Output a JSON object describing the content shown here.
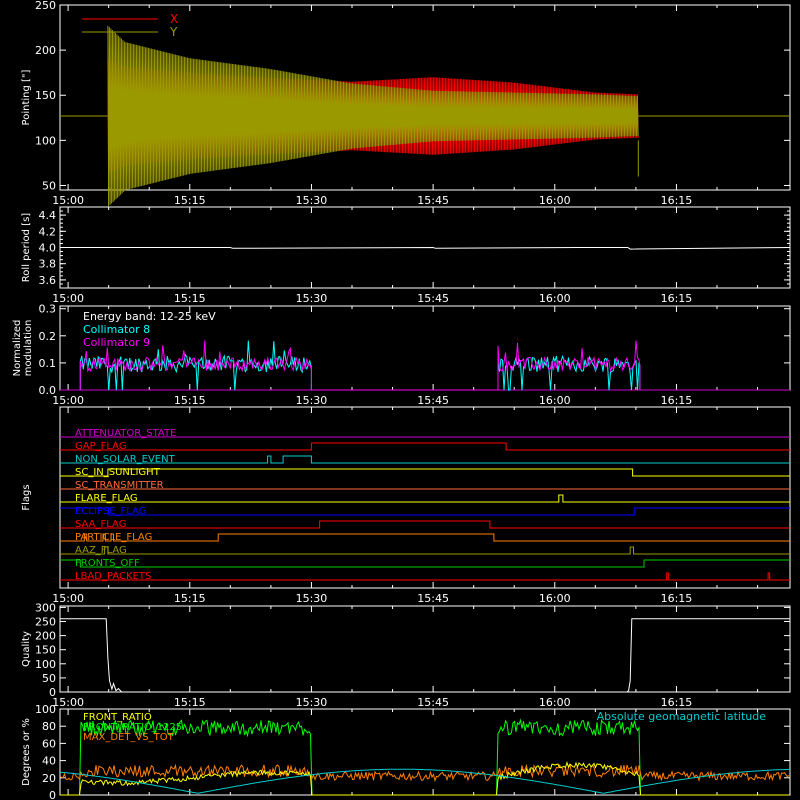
{
  "colors": {
    "x": "#ff0000",
    "y": "#9a9a00",
    "white": "#ffffff",
    "cyan": "#00ffff",
    "magenta": "#ff00ff",
    "purple": "#cc00cc",
    "orange": "#ff8000",
    "yellow": "#ffff00",
    "blue": "#0000ff",
    "green": "#00cc00",
    "bright_green": "#00ff00",
    "olive": "#9a9a00",
    "salmon": "#ff6a3a",
    "teal": "#00cccc"
  },
  "time_axis": {
    "range_min": [
      899,
      989
    ],
    "ticks_min": [
      900,
      915,
      930,
      945,
      960,
      975
    ],
    "tick_labels": [
      "15:00",
      "15:15",
      "15:30",
      "15:45",
      "16:00",
      "16:15"
    ]
  },
  "chart_data": [
    {
      "id": "pointing",
      "type": "line",
      "ylabel": "Pointing [\"]",
      "ylim": [
        45,
        250
      ],
      "yticks": [
        50,
        100,
        150,
        200,
        250
      ],
      "series": [
        {
          "name": "X",
          "color_key": "x",
          "kind": "oscillation",
          "center": 127,
          "start_min": 904.9,
          "end_min": 970.3,
          "envelope": [
            [
              904.9,
              63
            ],
            [
              907,
              55
            ],
            [
              915,
              48
            ],
            [
              925,
              42
            ],
            [
              935,
              38
            ],
            [
              945,
              43
            ],
            [
              955,
              37
            ],
            [
              965,
              26
            ],
            [
              970.3,
              24
            ]
          ]
        },
        {
          "name": "Y",
          "color_key": "y",
          "kind": "oscillation",
          "center": 127,
          "start_min": 904.9,
          "end_min": 970.3,
          "envelope": [
            [
              904.9,
              100
            ],
            [
              907,
              82
            ],
            [
              915,
              64
            ],
            [
              925,
              52
            ],
            [
              935,
              36
            ],
            [
              945,
              28
            ],
            [
              955,
              26
            ],
            [
              965,
              24
            ],
            [
              970.3,
              22
            ]
          ]
        }
      ],
      "baseline": 127
    },
    {
      "id": "roll_period",
      "type": "line",
      "ylabel": "Roll period [s]",
      "ylim": [
        3.5,
        4.5
      ],
      "yticks": [
        3.6,
        3.8,
        4.0,
        4.2,
        4.4
      ],
      "series": [
        {
          "name": "",
          "color_key": "white",
          "x": [
            899,
            920,
            920.3,
            945,
            945.3,
            963,
            969,
            969.3,
            989
          ],
          "y": [
            4.0,
            4.0,
            3.99,
            4.0,
            3.99,
            4.0,
            4.0,
            3.98,
            4.0
          ]
        }
      ]
    },
    {
      "id": "modulation",
      "type": "line",
      "ylabel": "Normalized modulation",
      "ylim": [
        0,
        0.31
      ],
      "yticks": [
        0.0,
        0.1,
        0.2,
        0.3
      ],
      "annotation": "Energy band: 12-25 keV",
      "intervals": [
        [
          901.5,
          930.0
        ],
        [
          953.0,
          970.5
        ]
      ],
      "level": 0.09,
      "series": [
        {
          "name": "Collimator 8",
          "color_key": "cyan"
        },
        {
          "name": "Collimator 9",
          "color_key": "magenta"
        }
      ]
    },
    {
      "id": "flags",
      "type": "line",
      "ylabel": "Flags",
      "rows": [
        {
          "name": "ATTENUATOR_STATE",
          "color_key": "purple",
          "steps": [
            [
              899,
              0
            ],
            [
              989,
              0
            ]
          ]
        },
        {
          "name": "GAP_FLAG",
          "color_key": "x",
          "steps": [
            [
              899,
              0
            ],
            [
              930,
              1
            ],
            [
              954,
              0
            ]
          ]
        },
        {
          "name": "NON_SOLAR_EVENT",
          "color_key": "teal",
          "steps": [
            [
              899,
              0
            ],
            [
              924.6,
              1
            ],
            [
              925,
              0
            ],
            [
              926.5,
              1
            ],
            [
              930,
              0
            ]
          ]
        },
        {
          "name": "SC_IN_SUNLIGHT",
          "color_key": "yellow",
          "steps": [
            [
              899,
              0
            ],
            [
              904.9,
              1
            ],
            [
              969.6,
              0
            ]
          ]
        },
        {
          "name": "SC_TRANSMITTER",
          "color_key": "salmon",
          "steps": [
            [
              899,
              0
            ],
            [
              989,
              0
            ]
          ]
        },
        {
          "name": "FLARE_FLAG",
          "color_key": "yellow",
          "steps": [
            [
              899,
              0
            ],
            [
              960.5,
              1
            ],
            [
              961,
              0
            ]
          ]
        },
        {
          "name": "ECLIPSE_FLAG",
          "color_key": "blue",
          "steps": [
            [
              899,
              1
            ],
            [
              905.0,
              0
            ],
            [
              969.8,
              1
            ]
          ]
        },
        {
          "name": "SAA_FLAG",
          "color_key": "x",
          "steps": [
            [
              899,
              0
            ],
            [
              931,
              1
            ],
            [
              952,
              0
            ]
          ]
        },
        {
          "name": "PARTICLE_FLAG",
          "color_key": "orange",
          "steps": [
            [
              899,
              0
            ],
            [
              902,
              1
            ],
            [
              902.3,
              0
            ],
            [
              904.3,
              1
            ],
            [
              904.6,
              0
            ],
            [
              905.3,
              1
            ],
            [
              905.6,
              0
            ],
            [
              918.5,
              1
            ],
            [
              952.5,
              0
            ]
          ]
        },
        {
          "name": "AAZ_FLAG",
          "color_key": "olive",
          "steps": [
            [
              899,
              0
            ],
            [
              904.5,
              1
            ],
            [
              904.9,
              0
            ],
            [
              969.3,
              1
            ],
            [
              969.7,
              0
            ]
          ]
        },
        {
          "name": "FRONTS_OFF",
          "color_key": "green",
          "steps": [
            [
              899,
              1
            ],
            [
              901.5,
              0
            ],
            [
              971.0,
              1
            ]
          ]
        },
        {
          "name": "LBAD_PACKETS",
          "color_key": "x",
          "steps": [
            [
              899,
              0
            ],
            [
              973.8,
              1
            ],
            [
              974,
              0
            ],
            [
              986.3,
              1
            ],
            [
              986.5,
              0
            ]
          ]
        }
      ]
    },
    {
      "id": "quality",
      "type": "line",
      "ylabel": "Quality",
      "ylim": [
        0,
        305
      ],
      "yticks": [
        0,
        50,
        100,
        150,
        200,
        250,
        300
      ],
      "series": [
        {
          "name": "",
          "color_key": "white",
          "x": [
            899,
            904.7,
            904.9,
            905.1,
            905.4,
            905.6,
            905.9,
            906.2,
            906.6,
            907,
            968.9,
            969.1,
            969.3,
            969.5,
            989
          ],
          "y": [
            260,
            260,
            120,
            40,
            10,
            30,
            5,
            12,
            0,
            0,
            0,
            5,
            40,
            260,
            260
          ]
        }
      ]
    },
    {
      "id": "ratios",
      "type": "line",
      "ylabel": "Degrees or %",
      "ylim": [
        0,
        100
      ],
      "yticks": [
        0,
        20,
        40,
        60,
        80,
        100
      ],
      "annotation": "Absolute geomagnetic latitude",
      "series": [
        {
          "name": "FRONT_RATIO",
          "color_key": "yellow"
        },
        {
          "name": "FRONT_RATIO_1225",
          "color_key": "bright_green"
        },
        {
          "name": "MAX_DET_VS_TOT",
          "color_key": "orange"
        },
        {
          "name": "Absolute geomagnetic latitude",
          "color_key": "teal"
        }
      ]
    }
  ]
}
